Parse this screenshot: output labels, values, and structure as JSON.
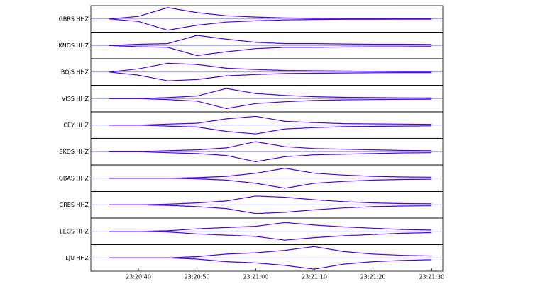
{
  "chart_data": {
    "type": "waveform",
    "x": [
      84035,
      84040,
      84045,
      84050,
      84055,
      84060,
      84065,
      84070,
      84075,
      84080,
      84085,
      84090
    ],
    "xlim": [
      84031.9,
      84091.9
    ],
    "xticks": [
      {
        "value": 84040,
        "label": "23:20:40"
      },
      {
        "value": 84050,
        "label": "23:20:50"
      },
      {
        "value": 84060,
        "label": "23:21:00"
      },
      {
        "value": 84070,
        "label": "23:21:10"
      },
      {
        "value": 84080,
        "label": "23:21:20"
      },
      {
        "value": 84090,
        "label": "23:21:30"
      }
    ],
    "ylim": [
      -1,
      1
    ],
    "series": [
      {
        "name": "GBRS HHZ",
        "color": "#5000ee",
        "values": [
          0,
          0.2,
          0.9,
          0.5,
          0.25,
          0.15,
          0.08,
          0.05,
          0.03,
          0.03,
          0.02,
          0.02
        ]
      },
      {
        "name": "KNDS HHZ",
        "color": "#5000ee",
        "values": [
          0,
          0.1,
          0.15,
          0.8,
          0.5,
          0.25,
          0.15,
          0.15,
          0.12,
          0.1,
          0.1,
          0.08
        ]
      },
      {
        "name": "BOJS HHZ",
        "color": "#5000ee",
        "values": [
          0,
          0.25,
          0.7,
          0.6,
          0.3,
          0.2,
          0.12,
          0.1,
          0.08,
          0.06,
          0.05,
          0.05
        ]
      },
      {
        "name": "VISS HHZ",
        "color": "#5000ee",
        "values": [
          0,
          0,
          0.08,
          0.2,
          0.8,
          0.4,
          0.25,
          0.15,
          0.1,
          0.08,
          0.06,
          0.05
        ]
      },
      {
        "name": "CEY HHZ",
        "color": "#5000ee",
        "values": [
          0,
          0,
          0.08,
          0.15,
          0.5,
          0.7,
          0.3,
          0.2,
          0.12,
          0.1,
          0.08,
          0.06
        ]
      },
      {
        "name": "SKDS HHZ",
        "color": "#5000ee",
        "values": [
          0,
          0,
          0.08,
          0.15,
          0.3,
          0.8,
          0.4,
          0.25,
          0.2,
          0.15,
          0.1,
          0.08
        ]
      },
      {
        "name": "GBAS HHZ",
        "color": "#5000ee",
        "values": [
          0,
          0,
          0,
          0.05,
          0.15,
          0.4,
          0.8,
          0.4,
          0.25,
          0.15,
          0.1,
          0.08
        ]
      },
      {
        "name": "CRES HHZ",
        "color": "#5000ee",
        "values": [
          0,
          0,
          0.05,
          0.15,
          0.3,
          0.7,
          0.6,
          0.4,
          0.25,
          0.15,
          0.1,
          0.08
        ]
      },
      {
        "name": "LEGS HHZ",
        "color": "#5000ee",
        "values": [
          0,
          0,
          0.05,
          0.2,
          0.3,
          0.4,
          0.7,
          0.5,
          0.35,
          0.25,
          0.15,
          0.1
        ]
      },
      {
        "name": "LJU HHZ",
        "color": "#5000ee",
        "values": [
          0,
          0,
          0,
          0.1,
          0.3,
          0.4,
          0.6,
          0.9,
          0.5,
          0.3,
          0.2,
          0.15
        ]
      }
    ]
  }
}
